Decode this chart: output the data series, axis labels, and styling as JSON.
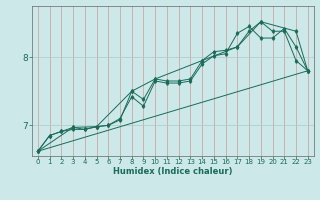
{
  "xlabel": "Humidex (Indice chaleur)",
  "bg_color": "#cce8e8",
  "grid_color_h": "#aacccc",
  "grid_color_v": "#cc9999",
  "line_color": "#1a6b5a",
  "xlim": [
    -0.5,
    23.5
  ],
  "ylim": [
    6.55,
    8.75
  ],
  "yticks": [
    7,
    8
  ],
  "xticks": [
    0,
    1,
    2,
    3,
    4,
    5,
    6,
    7,
    8,
    9,
    10,
    11,
    12,
    13,
    14,
    15,
    16,
    17,
    18,
    19,
    20,
    21,
    22,
    23
  ],
  "series1": [
    [
      0,
      6.62
    ],
    [
      1,
      6.85
    ],
    [
      2,
      6.91
    ],
    [
      3,
      6.97
    ],
    [
      4,
      6.94
    ],
    [
      5,
      6.98
    ],
    [
      6,
      7.0
    ],
    [
      7,
      7.08
    ],
    [
      8,
      7.5
    ],
    [
      9,
      7.38
    ],
    [
      10,
      7.68
    ],
    [
      11,
      7.65
    ],
    [
      12,
      7.65
    ],
    [
      13,
      7.68
    ],
    [
      14,
      7.95
    ],
    [
      15,
      8.08
    ],
    [
      16,
      8.1
    ],
    [
      17,
      8.15
    ],
    [
      18,
      8.38
    ],
    [
      19,
      8.52
    ],
    [
      20,
      8.38
    ],
    [
      21,
      8.38
    ],
    [
      22,
      7.95
    ],
    [
      23,
      7.8
    ]
  ],
  "series2": [
    [
      0,
      6.62
    ],
    [
      1,
      6.85
    ],
    [
      2,
      6.91
    ],
    [
      3,
      6.94
    ],
    [
      4,
      6.94
    ],
    [
      5,
      6.98
    ],
    [
      6,
      7.0
    ],
    [
      7,
      7.1
    ],
    [
      8,
      7.42
    ],
    [
      9,
      7.28
    ],
    [
      10,
      7.65
    ],
    [
      11,
      7.62
    ],
    [
      12,
      7.62
    ],
    [
      13,
      7.65
    ],
    [
      14,
      7.9
    ],
    [
      15,
      8.02
    ],
    [
      16,
      8.05
    ],
    [
      17,
      8.35
    ],
    [
      18,
      8.45
    ],
    [
      19,
      8.28
    ],
    [
      20,
      8.28
    ],
    [
      21,
      8.42
    ],
    [
      22,
      8.15
    ],
    [
      23,
      7.8
    ]
  ],
  "series3": [
    [
      0,
      6.62
    ],
    [
      3,
      6.97
    ],
    [
      5,
      6.98
    ],
    [
      8,
      7.5
    ],
    [
      10,
      7.68
    ],
    [
      14,
      7.95
    ],
    [
      17,
      8.15
    ],
    [
      19,
      8.52
    ],
    [
      22,
      8.38
    ],
    [
      23,
      7.8
    ]
  ],
  "series4": [
    [
      0,
      6.62
    ],
    [
      23,
      7.8
    ]
  ]
}
